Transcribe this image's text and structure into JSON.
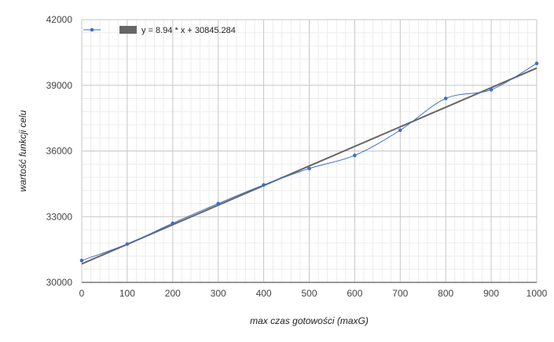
{
  "chart_data": {
    "type": "line",
    "xlabel": "max czas gotowości (maxG)",
    "ylabel": "wartość funkcji celu",
    "xlim": [
      0,
      1000
    ],
    "ylim": [
      30000,
      42000
    ],
    "x_ticks": [
      "0",
      "100",
      "200",
      "300",
      "400",
      "500",
      "600",
      "700",
      "800",
      "900",
      "1000"
    ],
    "y_ticks": [
      "30000",
      "33000",
      "36000",
      "39000",
      "42000"
    ],
    "grid": true,
    "legend_position": "top-left",
    "series": [
      {
        "name": "",
        "kind": "smooth-line-markers",
        "color": "#3c6fc9",
        "x": [
          0,
          100,
          200,
          300,
          400,
          500,
          600,
          700,
          800,
          900,
          1000
        ],
        "y": [
          31000,
          31750,
          32700,
          33600,
          34450,
          35200,
          35800,
          36950,
          38400,
          38800,
          40000
        ]
      },
      {
        "name": "y = 8.94 * x + 30845.284",
        "kind": "trendline",
        "color": "#666666",
        "slope": 8.94,
        "intercept": 30845.284
      }
    ]
  }
}
